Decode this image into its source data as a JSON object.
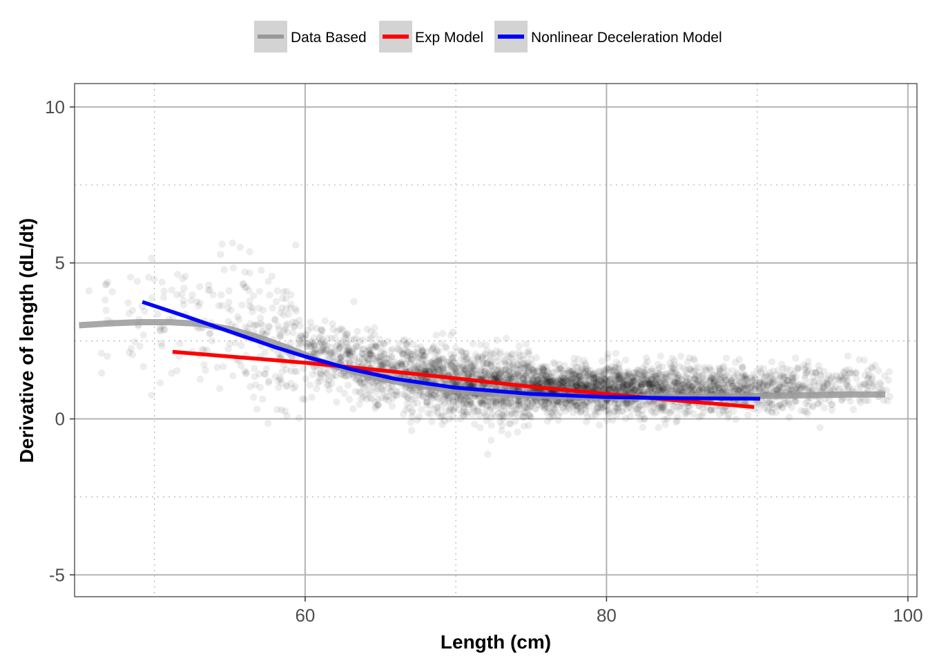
{
  "chart_data": {
    "type": "scatter",
    "title": "",
    "xlabel": "Length (cm)",
    "ylabel": "Derivative of length (dL/dt)",
    "xlim": [
      44.7,
      100.6
    ],
    "ylim": [
      -5.7,
      10.75
    ],
    "x_ticks": [
      60,
      80,
      100
    ],
    "x_tick_labels": [
      "60",
      "80",
      "100"
    ],
    "y_ticks": [
      -5,
      0,
      5,
      10
    ],
    "y_tick_labels": [
      "-5",
      "0",
      "5",
      "10"
    ],
    "x_minor_gridlines": [
      50,
      70,
      90
    ],
    "y_minor_gridlines": [
      -2.5,
      2.5,
      7.5
    ],
    "grid": true,
    "legend_position": "top",
    "points_color": "#000000",
    "points_opacity": 0.07,
    "series": [
      {
        "name": "Data Based",
        "color": "#999999",
        "x": [
          45,
          47,
          49,
          51,
          53,
          55,
          57,
          59,
          61,
          63,
          65,
          67,
          70,
          73,
          76,
          80,
          84,
          88,
          92,
          96,
          98.5
        ],
        "y": [
          3.0,
          3.06,
          3.1,
          3.1,
          3.05,
          2.88,
          2.6,
          2.25,
          1.85,
          1.55,
          1.3,
          1.1,
          0.92,
          0.8,
          0.73,
          0.7,
          0.7,
          0.72,
          0.75,
          0.78,
          0.78
        ]
      },
      {
        "name": "Exp Model",
        "color": "#ff0000",
        "x": [
          51.2,
          55,
          60,
          65,
          70,
          75,
          80,
          85,
          89.8
        ],
        "y": [
          2.15,
          2.0,
          1.8,
          1.56,
          1.3,
          1.03,
          0.8,
          0.58,
          0.38
        ]
      },
      {
        "name": "Nonlinear Deceleration Model",
        "color": "#0000ff",
        "x": [
          49.2,
          52,
          55,
          58,
          60,
          63,
          66,
          70,
          75,
          80,
          85,
          90.2
        ],
        "y": [
          3.75,
          3.3,
          2.8,
          2.3,
          2.0,
          1.6,
          1.28,
          1.0,
          0.8,
          0.7,
          0.66,
          0.65
        ]
      }
    ]
  }
}
